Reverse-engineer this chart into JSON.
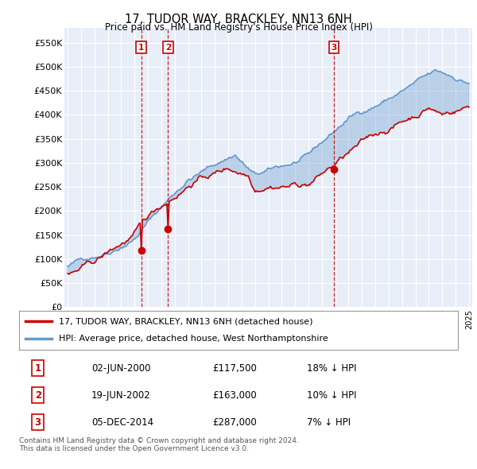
{
  "title": "17, TUDOR WAY, BRACKLEY, NN13 6NH",
  "subtitle": "Price paid vs. HM Land Registry's House Price Index (HPI)",
  "ylim": [
    0,
    580000
  ],
  "yticks": [
    0,
    50000,
    100000,
    150000,
    200000,
    250000,
    300000,
    350000,
    400000,
    450000,
    500000,
    550000
  ],
  "ytick_labels": [
    "£0",
    "£50K",
    "£100K",
    "£150K",
    "£200K",
    "£250K",
    "£300K",
    "£350K",
    "£400K",
    "£450K",
    "£500K",
    "£550K"
  ],
  "background_color": "#ffffff",
  "plot_bg_color": "#e8eef8",
  "grid_color": "#ffffff",
  "legend_entries": [
    "17, TUDOR WAY, BRACKLEY, NN13 6NH (detached house)",
    "HPI: Average price, detached house, West Northamptonshire"
  ],
  "sold_line_color": "#cc0000",
  "hpi_line_color": "#6699cc",
  "fill_color": "#ccdaee",
  "vline_color": "#cc0000",
  "transaction_markers": [
    {
      "label": "1",
      "year_idx": 60,
      "price": 117500
    },
    {
      "label": "2",
      "year_idx": 84,
      "price": 163000
    },
    {
      "label": "3",
      "year_idx": 240,
      "price": 287000
    }
  ],
  "table_rows": [
    {
      "num": "1",
      "date": "02-JUN-2000",
      "price": "£117,500",
      "hpi": "18% ↓ HPI"
    },
    {
      "num": "2",
      "date": "19-JUN-2002",
      "price": "£163,000",
      "hpi": "10% ↓ HPI"
    },
    {
      "num": "3",
      "date": "05-DEC-2014",
      "price": "£287,000",
      "hpi": "7% ↓ HPI"
    }
  ],
  "footnote": "Contains HM Land Registry data © Crown copyright and database right 2024.\nThis data is licensed under the Open Government Licence v3.0."
}
